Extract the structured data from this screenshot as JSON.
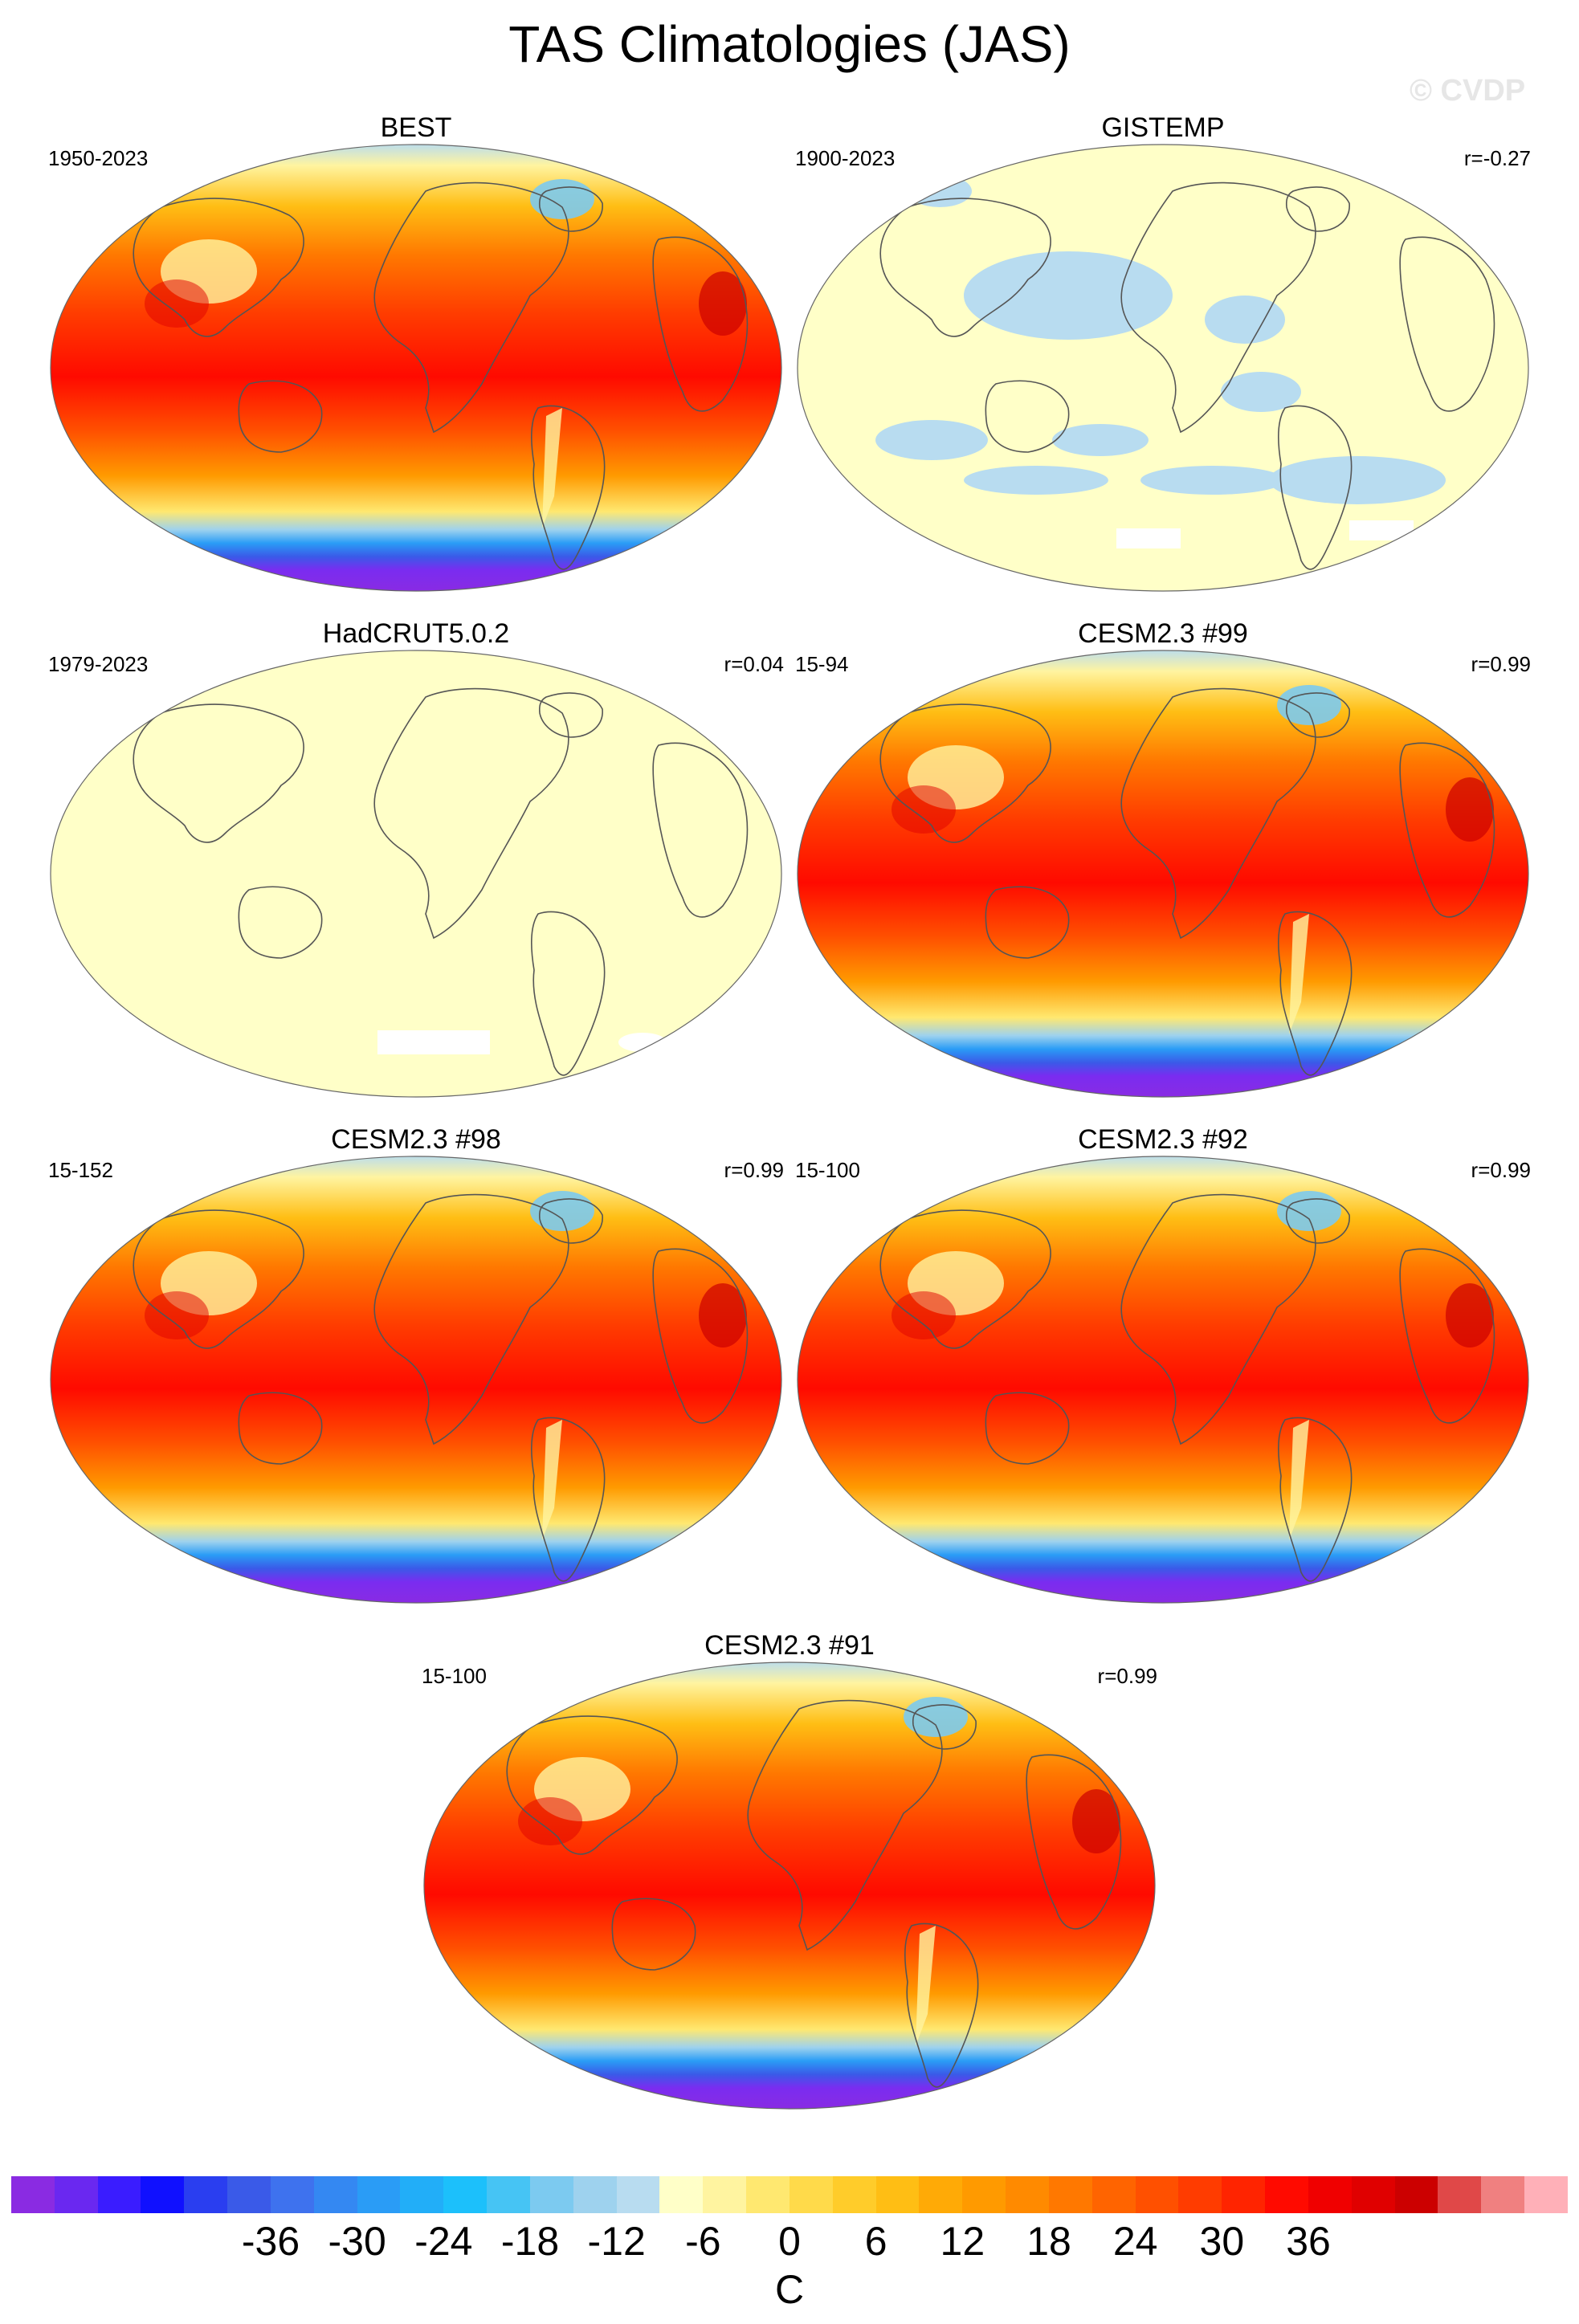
{
  "title": "TAS Climatologies (JAS)",
  "watermark": "© CVDP",
  "panels": [
    {
      "name": "BEST",
      "years": "1950-2023",
      "r": "",
      "style": "full"
    },
    {
      "name": "GISTEMP",
      "years": "1900-2023",
      "r": "r=-0.27",
      "style": "diff"
    },
    {
      "name": "HadCRUT5.0.2",
      "years": "1979-2023",
      "r": "r=0.04",
      "style": "flat"
    },
    {
      "name": "CESM2.3 #99",
      "years": "15-94",
      "r": "r=0.99",
      "style": "full"
    },
    {
      "name": "CESM2.3 #98",
      "years": "15-152",
      "r": "r=0.99",
      "style": "full"
    },
    {
      "name": "CESM2.3 #92",
      "years": "15-100",
      "r": "r=0.99",
      "style": "full"
    },
    {
      "name": "CESM2.3 #91",
      "years": "15-100",
      "r": "r=0.99",
      "style": "full"
    }
  ],
  "colorbar": {
    "labels": [
      "-36",
      "-30",
      "-24",
      "-18",
      "-12",
      "-6",
      "0",
      "6",
      "12",
      "18",
      "24",
      "30",
      "36"
    ],
    "unit": "C",
    "colors": [
      "#8a2be2",
      "#6a28f0",
      "#3a1cff",
      "#1010ff",
      "#2a3ef0",
      "#3a5ae8",
      "#3e72ee",
      "#3488f2",
      "#2a9cf6",
      "#22aef8",
      "#1cc0fb",
      "#46c4f4",
      "#7ccaf0",
      "#9ed2ee",
      "#b8dcf0",
      "#ffffc8",
      "#fff4a0",
      "#ffe870",
      "#ffda4a",
      "#ffcc2a",
      "#ffbe14",
      "#ffaa06",
      "#ff9a00",
      "#ff8a00",
      "#ff7800",
      "#ff6400",
      "#ff5000",
      "#ff3c00",
      "#ff2400",
      "#ff0a00",
      "#f00000",
      "#e00000",
      "#cc0000",
      "#e04848",
      "#f08080",
      "#ffb0b8"
    ]
  }
}
